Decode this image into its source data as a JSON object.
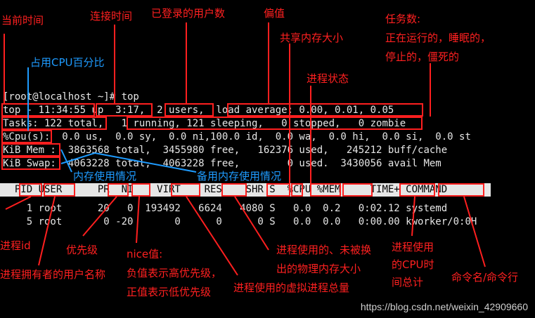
{
  "terminal": {
    "prompt": "[root@localhost ~]# top",
    "top_line": "top - 11:34:55 up  3:17,  2 users,  load average: 0.00, 0.01, 0.05",
    "tasks_line": "Tasks: 122 total,   1 running, 121 sleeping,   0 stopped,   0 zombie",
    "cpu_line": "%Cpu(s):  0.0 us,  0.0 sy,  0.0 ni,100.0 id,  0.0 wa,  0.0 hi,  0.0 si,  0.0 st",
    "mem_line": "KiB Mem :  3863568 total,  3455980 free,   162376 used,   245212 buff/cache",
    "swap_line": "KiB Swap:  4063228 total,  4063228 free,        0 used.  3430056 avail Mem",
    "header": "  PID USER      PR  NI    VIRT    RES    SHR S  %CPU %MEM     TIME+ COMMAND",
    "rows": [
      "    1 root      20   0  193492   6624   4080 S   0.0  0.2   0:02.12 systemd",
      "    5 root       0 -20       0      0      0 S   0.0  0.0   0:00.00 kworker/0:0H"
    ]
  },
  "annotations": {
    "current_time": "当前时间",
    "connect_time": "连接时间",
    "logged_users": "已登录的用户数",
    "load_avg": "偏值",
    "tasks_count": "任务数:\n正在运行的，睡眠的，\n停止的，僵死的",
    "cpu_percent": "占用CPU百分比",
    "shared_mem": "共享内存大小",
    "proc_state": "进程状态",
    "mem_usage": "内存使用情况",
    "swap_usage": "备用内存使用情况",
    "pid": "进程id",
    "user": "进程拥有者的用户名称",
    "priority": "优先级",
    "nice": "nice值:\n负值表示高优先级，\n正值表示低优先级",
    "virt": "进程使用的虚拟进程总量",
    "res": "进程使用的、未被换\n出的物理内存大小",
    "time": "进程使用\n的CPU时\n间总计",
    "command": "命令名/命令行"
  },
  "watermark": "https://blog.csdn.net/weixin_42909660",
  "colors": {
    "annotation_red": "#ff2020",
    "annotation_blue": "#1e9bff",
    "terminal_bg": "#000000"
  }
}
